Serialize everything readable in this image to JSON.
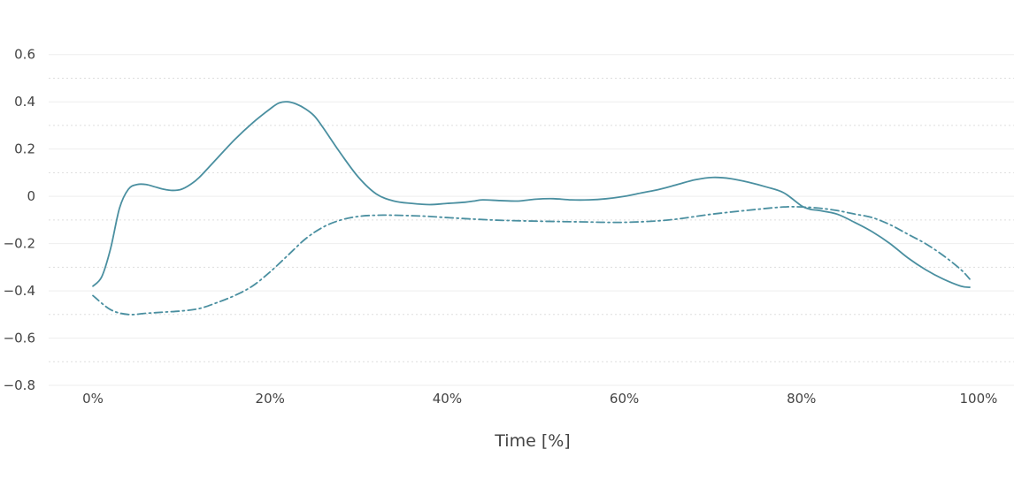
{
  "chart_data": {
    "type": "line",
    "title": "",
    "xlabel": "Time [%]",
    "ylabel": "",
    "xlim": [
      -5,
      104
    ],
    "ylim": [
      -0.8,
      0.7
    ],
    "x_ticks": [
      0,
      20,
      40,
      60,
      80,
      100
    ],
    "x_tick_labels": [
      "0%",
      "20%",
      "40%",
      "60%",
      "80%",
      "100%"
    ],
    "y_ticks": [
      0.6,
      0.4,
      0.2,
      0,
      -0.2,
      -0.4,
      -0.6,
      -0.8
    ],
    "y_tick_labels": [
      "0.6",
      "0.4",
      "0.2",
      "0",
      "−0.2",
      "−0.4",
      "−0.6",
      "−0.8"
    ],
    "grid": true,
    "legend": "none",
    "line_color": "#4a8fa0",
    "series": [
      {
        "style": "solid",
        "x": [
          0,
          1,
          2,
          3,
          4,
          5,
          6,
          7,
          8,
          9,
          10,
          11,
          12,
          14,
          16,
          18,
          20,
          21,
          22,
          23,
          24,
          25,
          26,
          28,
          30,
          32,
          34,
          36,
          38,
          40,
          42,
          43,
          44,
          46,
          48,
          50,
          52,
          54,
          56,
          58,
          60,
          62,
          64,
          66,
          68,
          70,
          72,
          74,
          76,
          78,
          80,
          81,
          82,
          84,
          86,
          88,
          90,
          92,
          94,
          96,
          98,
          99
        ],
        "y": [
          -0.38,
          -0.34,
          -0.22,
          -0.05,
          0.03,
          0.05,
          0.05,
          0.04,
          0.03,
          0.025,
          0.03,
          0.05,
          0.08,
          0.16,
          0.24,
          0.31,
          0.37,
          0.395,
          0.4,
          0.39,
          0.37,
          0.34,
          0.29,
          0.18,
          0.08,
          0.01,
          -0.02,
          -0.03,
          -0.035,
          -0.03,
          -0.025,
          -0.02,
          -0.015,
          -0.018,
          -0.02,
          -0.012,
          -0.01,
          -0.015,
          -0.015,
          -0.01,
          0.0,
          0.015,
          0.03,
          0.05,
          0.07,
          0.08,
          0.075,
          0.06,
          0.04,
          0.015,
          -0.04,
          -0.055,
          -0.06,
          -0.075,
          -0.11,
          -0.15,
          -0.2,
          -0.26,
          -0.31,
          -0.35,
          -0.38,
          -0.385
        ]
      },
      {
        "style": "dashdot",
        "x": [
          0,
          2,
          4,
          6,
          8,
          10,
          12,
          14,
          16,
          18,
          20,
          22,
          24,
          26,
          28,
          30,
          32,
          34,
          36,
          38,
          40,
          45,
          50,
          55,
          60,
          65,
          70,
          75,
          78,
          80,
          82,
          84,
          86,
          88,
          90,
          92,
          94,
          96,
          98,
          99
        ],
        "y": [
          -0.42,
          -0.48,
          -0.5,
          -0.495,
          -0.49,
          -0.485,
          -0.475,
          -0.45,
          -0.42,
          -0.38,
          -0.32,
          -0.25,
          -0.18,
          -0.13,
          -0.1,
          -0.085,
          -0.08,
          -0.08,
          -0.082,
          -0.085,
          -0.09,
          -0.1,
          -0.105,
          -0.108,
          -0.11,
          -0.1,
          -0.075,
          -0.055,
          -0.045,
          -0.045,
          -0.05,
          -0.06,
          -0.075,
          -0.09,
          -0.12,
          -0.16,
          -0.2,
          -0.25,
          -0.31,
          -0.35
        ]
      }
    ]
  }
}
